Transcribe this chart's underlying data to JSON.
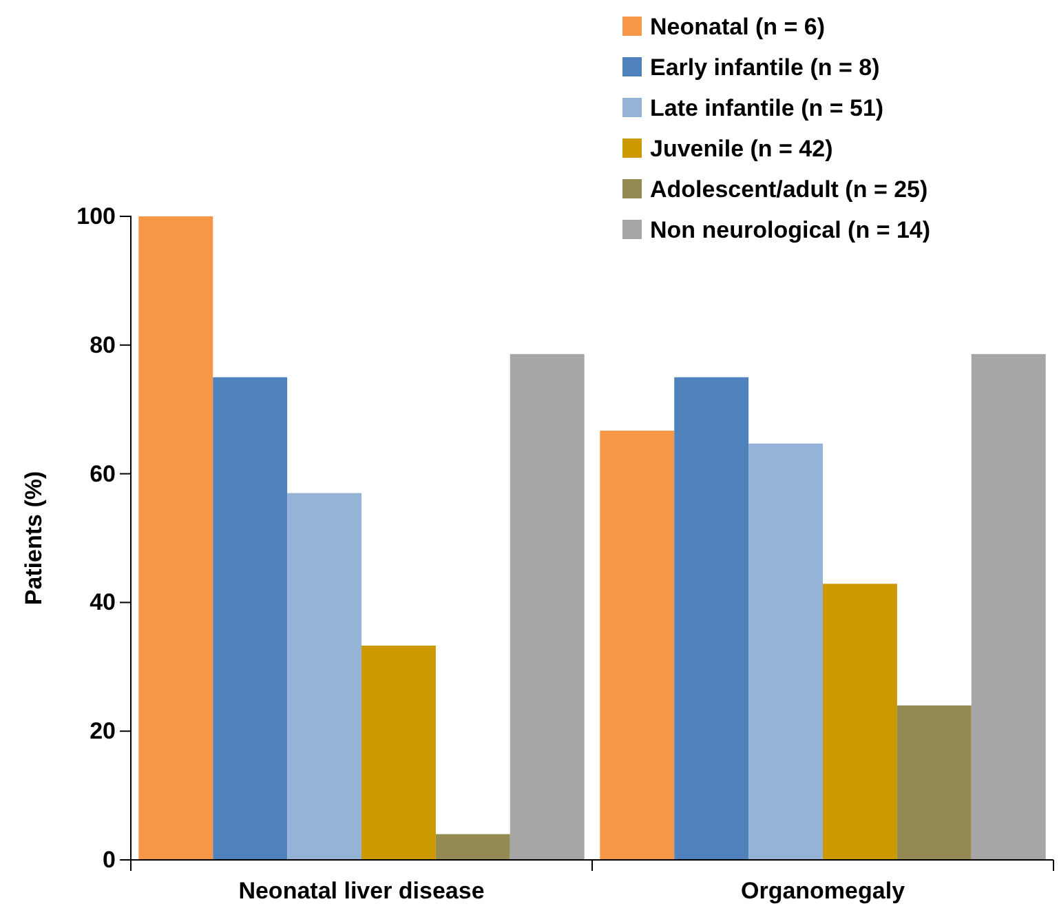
{
  "chart_data": {
    "type": "bar",
    "ylabel": "Patients (%)",
    "categories": [
      "Neonatal liver disease",
      "Organomegaly"
    ],
    "series": [
      {
        "name": "Neonatal (n = 6)",
        "color": "#f79646",
        "values": [
          100,
          66.7
        ]
      },
      {
        "name": "Early infantile (n = 8)",
        "color": "#4f81bd",
        "values": [
          75,
          75
        ]
      },
      {
        "name": "Late infantile (n = 51)",
        "color": "#95b3d7",
        "values": [
          57,
          64.7
        ]
      },
      {
        "name": "Juvenile (n = 42)",
        "color": "#cc9900",
        "values": [
          33.3,
          42.9
        ]
      },
      {
        "name": "Adolescent/adult (n = 25)",
        "color": "#948a54",
        "values": [
          4,
          24
        ]
      },
      {
        "name": "Non neurological (n = 14)",
        "color": "#a6a6a6",
        "values": [
          78.6,
          78.6
        ]
      }
    ],
    "ylim": [
      0,
      100
    ],
    "yticks": [
      0,
      20,
      40,
      60,
      80,
      100
    ],
    "grid": false,
    "legend": "top right"
  }
}
